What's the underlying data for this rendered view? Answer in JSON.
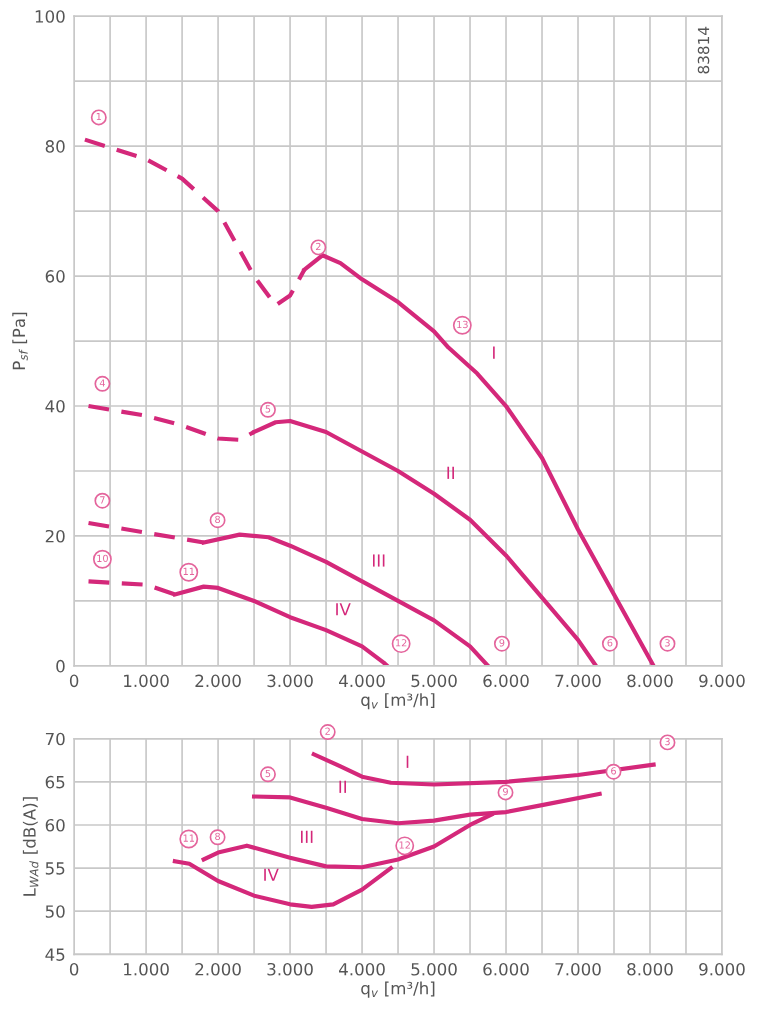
{
  "chart_data": [
    {
      "type": "line",
      "xlabel": "q$_{v}$ [m³/h]",
      "ylabel": "P$_{sf}$ [Pa]",
      "xlim": [
        0,
        9000
      ],
      "ylim": [
        0,
        100
      ],
      "xticks": [
        0,
        {
          "value": 500,
          "label": null
        },
        {
          "value": 1000,
          "label": "1.000"
        },
        {
          "value": 1500,
          "label": null
        },
        {
          "value": 2000,
          "label": "2.000"
        },
        {
          "value": 2500,
          "label": null
        },
        {
          "value": 3000,
          "label": "3.000"
        },
        {
          "value": 3500,
          "label": null
        },
        {
          "value": 4000,
          "label": "4.000"
        },
        {
          "value": 4500,
          "label": null
        },
        {
          "value": 5000,
          "label": "5.000"
        },
        {
          "value": 5500,
          "label": null
        },
        {
          "value": 6000,
          "label": "6.000"
        },
        {
          "value": 6500,
          "label": null
        },
        {
          "value": 7000,
          "label": "7.000"
        },
        {
          "value": 7500,
          "label": null
        },
        {
          "value": 8000,
          "label": "8.000"
        },
        {
          "value": 8500,
          "label": null
        },
        {
          "value": 9000,
          "label": "9.000"
        }
      ],
      "yticks": [
        0,
        {
          "value": 10,
          "label": null
        },
        20,
        {
          "value": 30,
          "label": null
        },
        40,
        {
          "value": 50,
          "label": null
        },
        60,
        {
          "value": 70,
          "label": null
        },
        80,
        {
          "value": 90,
          "label": null
        },
        100
      ],
      "grid": true,
      "marker": "none",
      "legend": false,
      "series": [
        {
          "color": "#d4287a",
          "line_style": "dashed",
          "x": [
            150,
            1000,
            1500,
            2000,
            2500,
            2800,
            3000,
            3200
          ],
          "values": [
            81,
            78,
            75,
            70,
            60,
            55.5,
            57,
            61
          ]
        },
        {
          "color": "#d4287a",
          "line_style": "solid",
          "x": [
            3200,
            3450,
            3700,
            4000,
            4500,
            5000,
            5200,
            5600,
            6000,
            6500,
            7000,
            7500,
            8050
          ],
          "values": [
            61,
            63.2,
            62,
            59.5,
            56,
            51.5,
            49,
            45,
            40,
            32,
            21,
            11,
            0
          ]
        },
        {
          "color": "#d4287a",
          "line_style": "dashed",
          "x": [
            200,
            1000,
            1500,
            2000,
            2300,
            2500
          ],
          "values": [
            40,
            38.5,
            37,
            35,
            34.8,
            36
          ]
        },
        {
          "color": "#d4287a",
          "line_style": "solid",
          "x": [
            2500,
            2800,
            3000,
            3500,
            4000,
            4500,
            5000,
            5500,
            6000,
            6500,
            7000,
            7250
          ],
          "values": [
            36,
            37.5,
            37.7,
            36,
            33,
            30,
            26.5,
            22.5,
            17,
            10.5,
            4,
            0
          ]
        },
        {
          "color": "#d4287a",
          "line_style": "dashed",
          "x": [
            200,
            1000,
            1800
          ],
          "values": [
            22,
            20.5,
            19
          ]
        },
        {
          "color": "#d4287a",
          "line_style": "solid",
          "x": [
            1800,
            2300,
            2700,
            3000,
            3500,
            4000,
            4500,
            5000,
            5500,
            5750
          ],
          "values": [
            19,
            20.2,
            19.8,
            18.5,
            16,
            13,
            10,
            7,
            3,
            0
          ]
        },
        {
          "color": "#d4287a",
          "line_style": "dashed",
          "x": [
            200,
            1000,
            1400
          ],
          "values": [
            13,
            12.5,
            11
          ]
        },
        {
          "color": "#d4287a",
          "line_style": "solid",
          "x": [
            1400,
            1800,
            2000,
            2500,
            3000,
            3500,
            4000,
            4300,
            4350
          ],
          "values": [
            11,
            12.2,
            12,
            10,
            7.5,
            5.5,
            3,
            0.5,
            0
          ]
        }
      ],
      "annotations": [
        "83814",
        {
          "text": "1",
          "x": 150,
          "y": 81
        },
        {
          "text": "2",
          "x": 3200,
          "y": 61
        },
        {
          "text": "3",
          "x": 8050,
          "y": 0
        },
        {
          "text": "4",
          "x": 200,
          "y": 40
        },
        {
          "text": "5",
          "x": 2500,
          "y": 36
        },
        {
          "text": "6",
          "x": 7250,
          "y": 0
        },
        {
          "text": "7",
          "x": 200,
          "y": 22
        },
        {
          "text": "8",
          "x": 1800,
          "y": 19
        },
        {
          "text": "9",
          "x": 5750,
          "y": 0
        },
        {
          "text": "10",
          "x": 200,
          "y": 13
        },
        {
          "text": "11",
          "x": 1400,
          "y": 11
        },
        {
          "text": "12",
          "x": 4350,
          "y": 0
        },
        {
          "text": "13",
          "x": 5200,
          "y": 49
        },
        {
          "text": "I",
          "x": 5600,
          "y": 45
        },
        {
          "text": "II",
          "x": 5000,
          "y": 26.5
        },
        {
          "text": "III",
          "x": 4000,
          "y": 13
        },
        {
          "text": "IV",
          "x": 3500,
          "y": 5.5
        }
      ]
    },
    {
      "type": "line",
      "xlabel": "q$_{v}$ [m³/h]",
      "ylabel": "L$_{WAd}$ [dB(A)]",
      "xlim": [
        0,
        9000
      ],
      "ylim": [
        45,
        70
      ],
      "xticks": [
        0,
        {
          "value": 500,
          "label": null
        },
        {
          "value": 1000,
          "label": "1.000"
        },
        {
          "value": 1500,
          "label": null
        },
        {
          "value": 2000,
          "label": "2.000"
        },
        {
          "value": 2500,
          "label": null
        },
        {
          "value": 3000,
          "label": "3.000"
        },
        {
          "value": 3500,
          "label": null
        },
        {
          "value": 4000,
          "label": "4.000"
        },
        {
          "value": 4500,
          "label": null
        },
        {
          "value": 5000,
          "label": "5.000"
        },
        {
          "value": 5500,
          "label": null
        },
        {
          "value": 6000,
          "label": "6.000"
        },
        {
          "value": 6500,
          "label": null
        },
        {
          "value": 7000,
          "label": "7.000"
        },
        {
          "value": 7500,
          "label": null
        },
        {
          "value": 8000,
          "label": "8.000"
        },
        {
          "value": 8500,
          "label": null
        },
        {
          "value": 9000,
          "label": "9.000"
        }
      ],
      "yticks": [
        45,
        50,
        55,
        60,
        65,
        70
      ],
      "grid": true,
      "marker": "none",
      "legend": false,
      "series": [
        {
          "color": "#d4287a",
          "line_style": "solid",
          "x": [
            3330,
            3700,
            4000,
            4400,
            5000,
            6000,
            7000,
            8050
          ],
          "values": [
            68.2,
            66.8,
            65.6,
            64.9,
            64.7,
            65.0,
            65.8,
            67
          ]
        },
        {
          "color": "#d4287a",
          "line_style": "solid",
          "x": [
            2500,
            3000,
            3500,
            4000,
            4500,
            5000,
            5500,
            6000,
            6500,
            7300
          ],
          "values": [
            63.3,
            63.2,
            62,
            60.7,
            60.2,
            60.5,
            61.2,
            61.5,
            62.3,
            63.6
          ]
        },
        {
          "color": "#d4287a",
          "line_style": "solid",
          "x": [
            1800,
            2000,
            2400,
            3000,
            3500,
            4000,
            4500,
            5000,
            5500,
            5800
          ],
          "values": [
            56,
            56.8,
            57.6,
            56.2,
            55.2,
            55.1,
            56,
            57.5,
            60,
            61.2
          ]
        },
        {
          "color": "#d4287a",
          "line_style": "solid",
          "x": [
            1400,
            1600,
            2000,
            2500,
            3000,
            3300,
            3600,
            4000,
            4400
          ],
          "values": [
            55.8,
            55.5,
            53.5,
            51.8,
            50.8,
            50.5,
            50.8,
            52.5,
            55
          ]
        }
      ],
      "annotations": [
        {
          "text": "2",
          "x": 3330,
          "y": 68.2
        },
        {
          "text": "3",
          "x": 8050,
          "y": 67
        },
        {
          "text": "5",
          "x": 2500,
          "y": 63.3
        },
        {
          "text": "6",
          "x": 7300,
          "y": 63.6
        },
        {
          "text": "9",
          "x": 5800,
          "y": 61.2
        },
        {
          "text": "8",
          "x": 1800,
          "y": 56
        },
        {
          "text": "11",
          "x": 1400,
          "y": 55.8
        },
        {
          "text": "12",
          "x": 4400,
          "y": 55
        },
        {
          "text": "I",
          "x": 4400,
          "y": 64.9
        },
        {
          "text": "II",
          "x": 3500,
          "y": 62
        },
        {
          "text": "III",
          "x": 3000,
          "y": 56.2
        },
        {
          "text": "IV",
          "x": 2500,
          "y": 51.8
        }
      ]
    }
  ]
}
